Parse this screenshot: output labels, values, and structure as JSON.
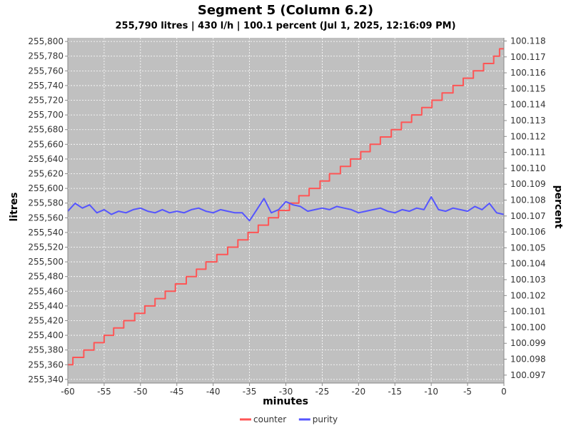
{
  "chart_data": {
    "type": "line",
    "title": "Segment  5 (Column  6.2)",
    "subtitle": "255,790 litres | 430 l/h | 100.1 percent (Jul 1, 2025, 12:16:09 PM)",
    "xlabel": "minutes",
    "ylabel_left": "litres",
    "ylabel_right": "percent",
    "xlim": [
      -60,
      0
    ],
    "ylim_left": [
      255335,
      255805
    ],
    "ylim_right": [
      100.0965,
      100.1182
    ],
    "x_ticks": [
      "-60",
      "-55",
      "-50",
      "-45",
      "-40",
      "-35",
      "-30",
      "-25",
      "-20",
      "-15",
      "-10",
      "-5",
      "0"
    ],
    "y_left_ticks": [
      "255,340",
      "255,360",
      "255,380",
      "255,400",
      "255,420",
      "255,440",
      "255,460",
      "255,480",
      "255,500",
      "255,520",
      "255,540",
      "255,560",
      "255,580",
      "255,600",
      "255,620",
      "255,640",
      "255,660",
      "255,680",
      "255,700",
      "255,720",
      "255,740",
      "255,760",
      "255,780",
      "255,800"
    ],
    "y_right_ticks": [
      "100.097",
      "100.098",
      "100.099",
      "100.100",
      "100.101",
      "100.102",
      "100.103",
      "100.104",
      "100.105",
      "100.106",
      "100.107",
      "100.108",
      "100.109",
      "100.110",
      "100.111",
      "100.112",
      "100.113",
      "100.114",
      "100.115",
      "100.116",
      "100.117",
      "100.118"
    ],
    "grid": true,
    "legend_position": "bottom",
    "background": "#c0c0c0",
    "series": [
      {
        "name": "counter",
        "axis": "left",
        "color": "#ff5555",
        "step": true,
        "x": [
          -60,
          -59.3,
          -57.8,
          -56.4,
          -55,
          -53.7,
          -52.3,
          -50.8,
          -49.4,
          -48,
          -46.6,
          -45.2,
          -43.7,
          -42.3,
          -41,
          -39.5,
          -38,
          -36.6,
          -35.2,
          -33.8,
          -32.4,
          -31,
          -29.5,
          -28.2,
          -26.8,
          -25.3,
          -24,
          -22.5,
          -21.1,
          -19.7,
          -18.4,
          -17,
          -15.5,
          -14.1,
          -12.7,
          -11.3,
          -9.9,
          -8.5,
          -7,
          -5.6,
          -4.2,
          -2.8,
          -1.4,
          -0.6,
          0
        ],
        "values": [
          255360,
          255370,
          255380,
          255390,
          255400,
          255410,
          255420,
          255430,
          255440,
          255450,
          255460,
          255470,
          255480,
          255490,
          255500,
          255510,
          255520,
          255530,
          255540,
          255550,
          255560,
          255570,
          255580,
          255590,
          255600,
          255610,
          255620,
          255630,
          255640,
          255650,
          255660,
          255670,
          255680,
          255690,
          255700,
          255710,
          255720,
          255730,
          255740,
          255750,
          255760,
          255770,
          255780,
          255790,
          255790
        ]
      },
      {
        "name": "purity",
        "axis": "right",
        "color": "#5555ff",
        "step": false,
        "x": [
          -60,
          -59,
          -58,
          -57,
          -56,
          -55,
          -54,
          -53,
          -52,
          -51,
          -50,
          -49,
          -48,
          -47,
          -46,
          -45,
          -44,
          -43,
          -42,
          -41,
          -40,
          -39,
          -38,
          -37,
          -36,
          -35,
          -34,
          -33,
          -32,
          -31,
          -30,
          -29,
          -28,
          -27,
          -26,
          -25,
          -24,
          -23,
          -22,
          -21,
          -20,
          -19,
          -18,
          -17,
          -16,
          -15,
          -14,
          -13,
          -12,
          -11,
          -10,
          -9,
          -8,
          -7,
          -6,
          -5,
          -4,
          -3,
          -2,
          -1,
          0
        ],
        "values": [
          100.1073,
          100.1078,
          100.1075,
          100.1077,
          100.1072,
          100.1074,
          100.1071,
          100.1073,
          100.1072,
          100.1074,
          100.1075,
          100.1073,
          100.1072,
          100.1074,
          100.1072,
          100.1073,
          100.1072,
          100.1074,
          100.1075,
          100.1073,
          100.1072,
          100.1074,
          100.1073,
          100.1072,
          100.1072,
          100.1067,
          100.1074,
          100.1081,
          100.1072,
          100.1074,
          100.1079,
          100.1077,
          100.1076,
          100.1073,
          100.1074,
          100.1075,
          100.1074,
          100.1076,
          100.1075,
          100.1074,
          100.1072,
          100.1073,
          100.1074,
          100.1075,
          100.1073,
          100.1072,
          100.1074,
          100.1073,
          100.1075,
          100.1074,
          100.1082,
          100.1074,
          100.1073,
          100.1075,
          100.1074,
          100.1073,
          100.1076,
          100.1074,
          100.1078,
          100.1072,
          100.1071
        ]
      }
    ]
  }
}
